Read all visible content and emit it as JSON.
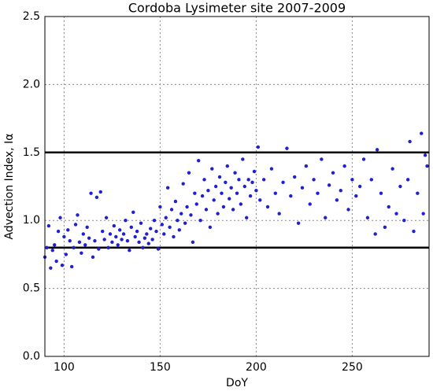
{
  "chart_data": {
    "type": "scatter",
    "title": "Cordoba Lysimeter site 2007-2009",
    "x_label": "DoY",
    "y_label": "Advection Index, Iα",
    "xlim": [
      90,
      290
    ],
    "ylim": [
      0,
      2.5
    ],
    "xticks": [
      100,
      150,
      200,
      250
    ],
    "yticks": [
      {
        "value": 0,
        "label": "0.0"
      },
      {
        "value": 0.5,
        "label": "0.5"
      },
      {
        "value": 1,
        "label": "1.0"
      },
      {
        "value": 1.5,
        "label": "1.5"
      },
      {
        "value": 2,
        "label": "2.0"
      },
      {
        "value": 2.5,
        "label": "2.5"
      }
    ],
    "grid": true,
    "hlines": [
      0.8,
      1.5
    ],
    "hline_color": "#000000",
    "series": [
      {
        "color": "#1f1fd6",
        "x": [
          90,
          91,
          92,
          93,
          94,
          95,
          96,
          97,
          98,
          99,
          100,
          101,
          102,
          103,
          104,
          105,
          106,
          107,
          108,
          109,
          110,
          111,
          112,
          113,
          114,
          115,
          116,
          117,
          118,
          119,
          120,
          121,
          122,
          123,
          124,
          125,
          126,
          127,
          128,
          129,
          130,
          131,
          132,
          133,
          134,
          135,
          136,
          137,
          138,
          139,
          140,
          141,
          142,
          143,
          144,
          145,
          146,
          147,
          148,
          149,
          150,
          151,
          152,
          153,
          154,
          155,
          156,
          157,
          158,
          159,
          160,
          161,
          162,
          163,
          164,
          165,
          166,
          167,
          168,
          169,
          170,
          171,
          172,
          173,
          174,
          175,
          176,
          177,
          178,
          179,
          180,
          181,
          182,
          183,
          184,
          185,
          186,
          187,
          188,
          189,
          190,
          191,
          192,
          193,
          194,
          195,
          196,
          197,
          198,
          199,
          200,
          201,
          202,
          204,
          206,
          208,
          210,
          212,
          214,
          216,
          218,
          220,
          222,
          224,
          226,
          228,
          230,
          232,
          234,
          236,
          238,
          240,
          242,
          244,
          246,
          248,
          250,
          252,
          254,
          256,
          258,
          260,
          262,
          263,
          265,
          267,
          269,
          271,
          273,
          275,
          277,
          279,
          280,
          282,
          284,
          286,
          287,
          288,
          289
        ],
        "y": [
          0.73,
          0.8,
          0.96,
          0.65,
          0.78,
          0.82,
          0.7,
          0.92,
          1.02,
          0.67,
          0.88,
          0.75,
          0.93,
          0.85,
          0.66,
          0.8,
          0.97,
          1.04,
          0.84,
          0.76,
          0.9,
          0.82,
          0.95,
          0.87,
          1.2,
          0.73,
          0.85,
          1.17,
          0.79,
          1.21,
          0.92,
          0.86,
          1.02,
          0.8,
          0.9,
          0.84,
          0.96,
          0.88,
          0.82,
          0.93,
          0.86,
          0.9,
          1.0,
          0.85,
          0.78,
          0.95,
          1.06,
          0.88,
          0.92,
          0.84,
          0.98,
          0.8,
          0.87,
          0.9,
          0.83,
          0.94,
          0.86,
          1.0,
          0.92,
          0.79,
          1.1,
          0.97,
          0.9,
          1.02,
          1.24,
          0.95,
          1.08,
          0.88,
          1.14,
          1.0,
          0.93,
          1.05,
          1.27,
          0.98,
          1.1,
          1.35,
          1.04,
          0.84,
          1.2,
          1.12,
          1.44,
          1.0,
          1.18,
          1.3,
          1.08,
          1.22,
          0.95,
          1.38,
          1.15,
          1.25,
          1.05,
          1.32,
          1.2,
          1.1,
          1.28,
          1.4,
          1.16,
          1.24,
          1.08,
          1.35,
          1.2,
          1.3,
          1.12,
          1.45,
          1.25,
          1.02,
          1.3,
          1.18,
          1.28,
          1.36,
          1.22,
          1.54,
          1.15,
          1.3,
          1.1,
          1.38,
          1.2,
          1.05,
          1.28,
          1.53,
          1.18,
          1.32,
          0.98,
          1.24,
          1.4,
          1.12,
          1.3,
          1.2,
          1.45,
          1.02,
          1.26,
          1.35,
          1.15,
          1.22,
          1.4,
          1.08,
          1.3,
          1.18,
          1.25,
          1.45,
          1.02,
          1.3,
          0.9,
          1.52,
          1.2,
          0.95,
          1.1,
          1.38,
          1.05,
          1.25,
          1.0,
          1.3,
          1.58,
          0.92,
          1.2,
          1.64,
          1.05,
          1.48,
          1.4
        ]
      }
    ]
  }
}
